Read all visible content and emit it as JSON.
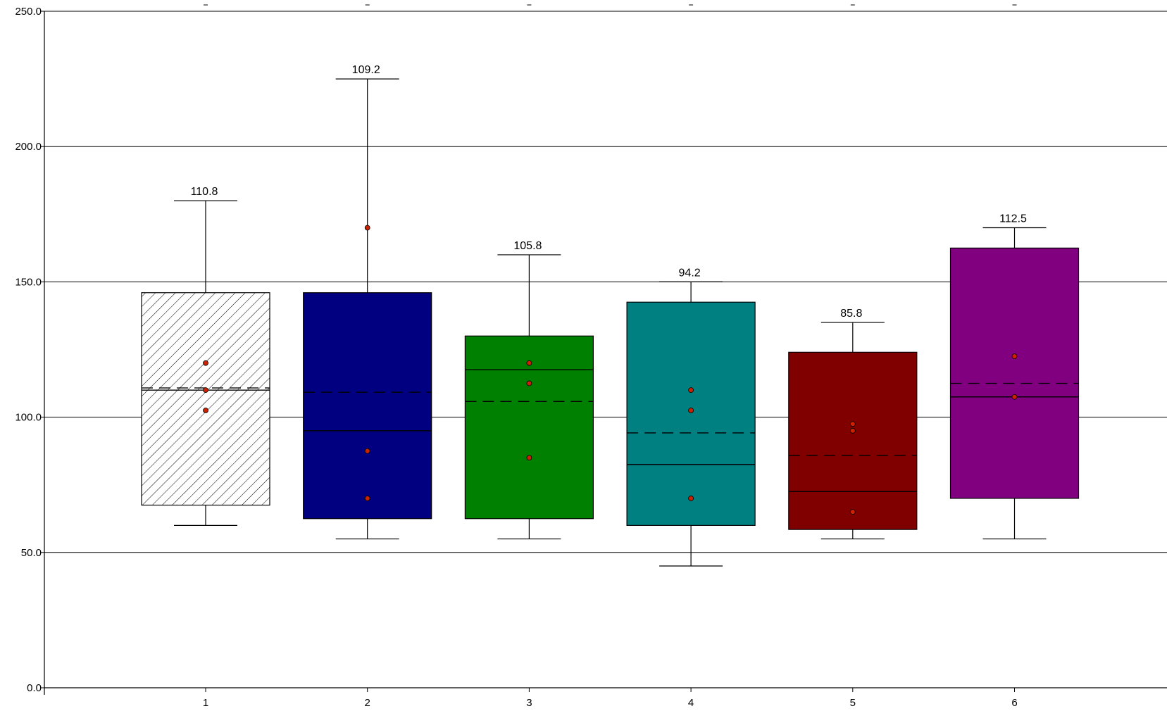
{
  "chart_data": {
    "type": "box",
    "title": "",
    "xlabel": "",
    "ylabel": "",
    "ylim": [
      0,
      250
    ],
    "yticks": [
      {
        "value": 0,
        "label": "0.0"
      },
      {
        "value": 50,
        "label": "50.0"
      },
      {
        "value": 100,
        "label": "100.0"
      },
      {
        "value": 150,
        "label": "150.0"
      },
      {
        "value": 200,
        "label": "200.0"
      },
      {
        "value": 250,
        "label": "250.0"
      }
    ],
    "grid": "horizontal",
    "categories": [
      "1",
      "2",
      "3",
      "4",
      "5",
      "6"
    ],
    "boxes": [
      {
        "category": "1",
        "whisker_low": 60,
        "q1": 67.5,
        "median": 110,
        "mean": 110.8,
        "q3": 146,
        "whisker_high": 180,
        "mean_label": "110.8",
        "fill": "hatch",
        "points": [
          102.5,
          110,
          120
        ]
      },
      {
        "category": "2",
        "whisker_low": 55,
        "q1": 62.5,
        "median": 95,
        "mean": 109.2,
        "q3": 146,
        "whisker_high": 225,
        "mean_label": "109.2",
        "fill": "#000080",
        "points": [
          70,
          87.5,
          170
        ]
      },
      {
        "category": "3",
        "whisker_low": 55,
        "q1": 62.5,
        "median": 117.5,
        "mean": 105.8,
        "q3": 130,
        "whisker_high": 160,
        "mean_label": "105.8",
        "fill": "#008000",
        "points": [
          85,
          112.5,
          120
        ]
      },
      {
        "category": "4",
        "whisker_low": 45,
        "q1": 60,
        "median": 82.5,
        "mean": 94.2,
        "q3": 142.5,
        "whisker_high": 150,
        "mean_label": "94.2",
        "fill": "#008080",
        "points": [
          70,
          102.5,
          110
        ]
      },
      {
        "category": "5",
        "whisker_low": 55,
        "q1": 58.5,
        "median": 72.5,
        "mean": 85.8,
        "q3": 124,
        "whisker_high": 135,
        "mean_label": "85.8",
        "fill": "#800000",
        "points": [
          65,
          95,
          97.5
        ]
      },
      {
        "category": "6",
        "whisker_low": 55,
        "q1": 70,
        "median": 107.5,
        "mean": 112.5,
        "q3": 162.5,
        "whisker_high": 170,
        "mean_label": "112.5",
        "fill": "#800080",
        "points": [
          107.5,
          122.5
        ]
      }
    ],
    "point_color": "#cc2200"
  }
}
